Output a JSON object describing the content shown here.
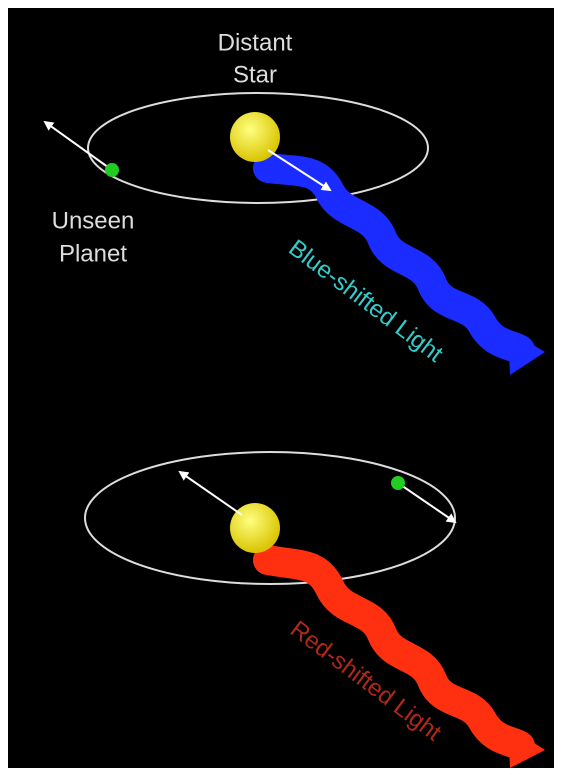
{
  "top_panel": {
    "star_label": [
      "Distant",
      "Star"
    ],
    "planet_label": [
      "Unseen",
      "Planet"
    ],
    "light_label": "Blue-shifted Light"
  },
  "bottom_panel": {
    "light_label": "Red-shifted Light"
  }
}
